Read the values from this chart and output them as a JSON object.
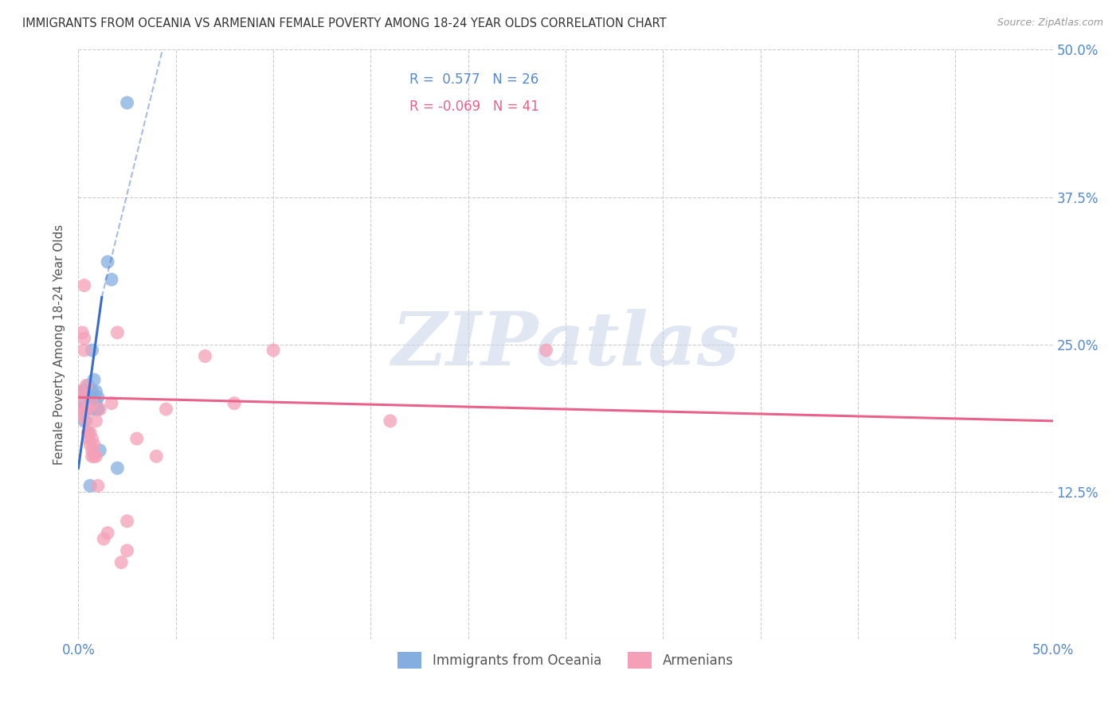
{
  "title": "IMMIGRANTS FROM OCEANIA VS ARMENIAN FEMALE POVERTY AMONG 18-24 YEAR OLDS CORRELATION CHART",
  "source": "Source: ZipAtlas.com",
  "ylabel": "Female Poverty Among 18-24 Year Olds",
  "xlim": [
    0,
    0.5
  ],
  "ylim": [
    0,
    0.5
  ],
  "xticks": [
    0.0,
    0.05,
    0.1,
    0.15,
    0.2,
    0.25,
    0.3,
    0.35,
    0.4,
    0.45,
    0.5
  ],
  "yticks": [
    0.0,
    0.125,
    0.25,
    0.375,
    0.5
  ],
  "xtick_labels_show": [
    "0.0%",
    "50.0%"
  ],
  "ytick_labels_right": [
    "",
    "12.5%",
    "25.0%",
    "37.5%",
    "50.0%"
  ],
  "background_color": "#ffffff",
  "grid_color": "#cccccc",
  "watermark_text": "ZIPatlas",
  "blue_color": "#85aee0",
  "pink_color": "#f4a0b8",
  "blue_line_color": "#3a6bc9",
  "pink_line_color": "#e8628a",
  "blue_scatter": [
    [
      0.001,
      0.195
    ],
    [
      0.002,
      0.21
    ],
    [
      0.002,
      0.21
    ],
    [
      0.003,
      0.185
    ],
    [
      0.003,
      0.2
    ],
    [
      0.004,
      0.21
    ],
    [
      0.004,
      0.195
    ],
    [
      0.005,
      0.215
    ],
    [
      0.005,
      0.175
    ],
    [
      0.005,
      0.195
    ],
    [
      0.006,
      0.13
    ],
    [
      0.006,
      0.2
    ],
    [
      0.007,
      0.245
    ],
    [
      0.007,
      0.21
    ],
    [
      0.008,
      0.195
    ],
    [
      0.008,
      0.22
    ],
    [
      0.009,
      0.21
    ],
    [
      0.009,
      0.2
    ],
    [
      0.01,
      0.205
    ],
    [
      0.01,
      0.195
    ],
    [
      0.01,
      0.195
    ],
    [
      0.011,
      0.16
    ],
    [
      0.015,
      0.32
    ],
    [
      0.017,
      0.305
    ],
    [
      0.02,
      0.145
    ],
    [
      0.025,
      0.455
    ]
  ],
  "pink_scatter": [
    [
      0.001,
      0.21
    ],
    [
      0.001,
      0.19
    ],
    [
      0.002,
      0.195
    ],
    [
      0.002,
      0.205
    ],
    [
      0.002,
      0.26
    ],
    [
      0.003,
      0.255
    ],
    [
      0.003,
      0.3
    ],
    [
      0.003,
      0.245
    ],
    [
      0.004,
      0.215
    ],
    [
      0.004,
      0.195
    ],
    [
      0.004,
      0.185
    ],
    [
      0.005,
      0.17
    ],
    [
      0.005,
      0.175
    ],
    [
      0.005,
      0.195
    ],
    [
      0.006,
      0.165
    ],
    [
      0.006,
      0.175
    ],
    [
      0.007,
      0.2
    ],
    [
      0.007,
      0.155
    ],
    [
      0.007,
      0.17
    ],
    [
      0.007,
      0.16
    ],
    [
      0.008,
      0.155
    ],
    [
      0.008,
      0.165
    ],
    [
      0.009,
      0.185
    ],
    [
      0.009,
      0.155
    ],
    [
      0.01,
      0.13
    ],
    [
      0.011,
      0.195
    ],
    [
      0.013,
      0.085
    ],
    [
      0.015,
      0.09
    ],
    [
      0.017,
      0.2
    ],
    [
      0.02,
      0.26
    ],
    [
      0.022,
      0.065
    ],
    [
      0.025,
      0.075
    ],
    [
      0.025,
      0.1
    ],
    [
      0.03,
      0.17
    ],
    [
      0.04,
      0.155
    ],
    [
      0.045,
      0.195
    ],
    [
      0.065,
      0.24
    ],
    [
      0.08,
      0.2
    ],
    [
      0.1,
      0.245
    ],
    [
      0.16,
      0.185
    ],
    [
      0.24,
      0.245
    ]
  ],
  "blue_trendline_solid": [
    [
      0.0,
      0.145
    ],
    [
      0.012,
      0.29
    ]
  ],
  "blue_trendline_dashed": [
    [
      0.012,
      0.29
    ],
    [
      0.055,
      0.58
    ]
  ],
  "pink_trendline": [
    [
      0.0,
      0.205
    ],
    [
      0.5,
      0.185
    ]
  ]
}
